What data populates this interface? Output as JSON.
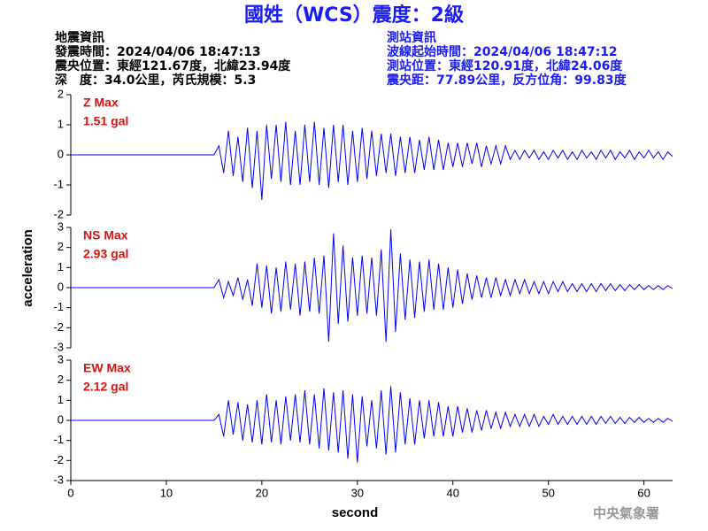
{
  "header": {
    "title": "國姓（WCS）震度：2級",
    "left": [
      "地震資訊",
      "發震時間：2024/04/06 18:47:13",
      "震央位置：東經121.67度，北緯23.94度",
      "深　度：34.0公里，芮氏規模：5.3"
    ],
    "right": [
      "測站資訊",
      "波線起始時間：2024/04/06 18:47:12",
      "測站位置：東經120.91度，北緯24.06度",
      "震央距：77.89公里，反方位角：99.83度"
    ],
    "y_label": "acceleration",
    "x_label": "second",
    "watermark": "中央氣象署"
  },
  "chart_data": [
    {
      "type": "line",
      "annotations": [
        "Z Max",
        "1.51 gal"
      ],
      "xlim": [
        0,
        63
      ],
      "ylim": [
        -2,
        2
      ],
      "yticks": [
        -2,
        -1,
        0,
        1,
        2
      ],
      "x": [
        0,
        15,
        15.5,
        16,
        16.5,
        17,
        17.5,
        18,
        18.5,
        19,
        19.5,
        20,
        20.5,
        21,
        21.5,
        22,
        22.5,
        23,
        23.5,
        24,
        24.5,
        25,
        25.5,
        26,
        26.5,
        27,
        27.5,
        28,
        28.5,
        29,
        29.5,
        30,
        30.5,
        31,
        31.5,
        32,
        32.5,
        33,
        33.5,
        34,
        34.5,
        35,
        35.5,
        36,
        36.5,
        37,
        37.5,
        38,
        38.5,
        39,
        39.5,
        40,
        40.5,
        41,
        41.5,
        42,
        42.5,
        43,
        43.5,
        44,
        44.5,
        45,
        45.5,
        46,
        46.5,
        47,
        47.5,
        48,
        48.5,
        49,
        49.5,
        50,
        50.5,
        51,
        51.5,
        52,
        52.5,
        53,
        53.5,
        54,
        54.5,
        55,
        55.5,
        56,
        56.5,
        57,
        57.5,
        58,
        58.5,
        59,
        59.5,
        60,
        60.5,
        61,
        61.5,
        62,
        62.5,
        63
      ],
      "series": [
        {
          "name": "Z",
          "color": "#0000ff",
          "values": [
            0,
            0,
            0.3,
            -0.6,
            0.8,
            -0.7,
            0.6,
            -0.9,
            0.9,
            -1.1,
            0.8,
            -1.5,
            1.0,
            -0.8,
            1.0,
            -0.9,
            1.1,
            -1.0,
            0.8,
            -1.0,
            1.0,
            -0.9,
            1.1,
            -1.0,
            0.9,
            -1.1,
            1.0,
            -0.9,
            1.0,
            -1.0,
            0.8,
            -0.9,
            0.9,
            -0.8,
            0.8,
            -0.7,
            0.7,
            -0.6,
            0.7,
            -0.7,
            0.6,
            -0.6,
            0.6,
            -0.6,
            0.5,
            -0.5,
            0.6,
            -0.5,
            0.5,
            -0.5,
            0.4,
            -0.4,
            0.4,
            -0.4,
            0.4,
            -0.3,
            0.4,
            -0.4,
            0.3,
            -0.3,
            0.3,
            -0.3,
            0.3,
            -0.15,
            0.15,
            -0.15,
            0.15,
            -0.1,
            0.15,
            -0.15,
            0.1,
            -0.15,
            0.15,
            -0.1,
            0.15,
            -0.15,
            0.1,
            -0.15,
            0.15,
            -0.1,
            0.1,
            -0.15,
            0.15,
            -0.1,
            0.15,
            -0.15,
            0.1,
            -0.1,
            0.15,
            -0.15,
            0.1,
            -0.1,
            0.15,
            -0.1,
            0.1,
            -0.15,
            0.1,
            -0.05
          ]
        }
      ]
    },
    {
      "type": "line",
      "annotations": [
        "NS Max",
        "2.93 gal"
      ],
      "xlim": [
        0,
        63
      ],
      "ylim": [
        -3,
        3
      ],
      "yticks": [
        -3,
        -2,
        -1,
        0,
        1,
        2,
        3
      ],
      "x": [
        0,
        15,
        15.5,
        16,
        16.5,
        17,
        17.5,
        18,
        18.5,
        19,
        19.5,
        20,
        20.5,
        21,
        21.5,
        22,
        22.5,
        23,
        23.5,
        24,
        24.5,
        25,
        25.5,
        26,
        26.5,
        27,
        27.5,
        28,
        28.5,
        29,
        29.5,
        30,
        30.5,
        31,
        31.5,
        32,
        32.5,
        33,
        33.5,
        34,
        34.5,
        35,
        35.5,
        36,
        36.5,
        37,
        37.5,
        38,
        38.5,
        39,
        39.5,
        40,
        40.5,
        41,
        41.5,
        42,
        42.5,
        43,
        43.5,
        44,
        44.5,
        45,
        45.5,
        46,
        46.5,
        47,
        47.5,
        48,
        48.5,
        49,
        49.5,
        50,
        50.5,
        51,
        51.5,
        52,
        52.5,
        53,
        53.5,
        54,
        54.5,
        55,
        55.5,
        56,
        56.5,
        57,
        57.5,
        58,
        58.5,
        59,
        59.5,
        60,
        60.5,
        61,
        61.5,
        62,
        62.5,
        63
      ],
      "series": [
        {
          "name": "NS",
          "color": "#0000ff",
          "values": [
            0,
            0,
            0.4,
            -0.5,
            0.3,
            -0.4,
            0.5,
            -0.6,
            0.4,
            -0.9,
            1.2,
            -1.0,
            1.1,
            -1.3,
            1.0,
            -1.2,
            1.3,
            -1.1,
            1.2,
            -1.4,
            1.3,
            -1.2,
            1.5,
            -1.3,
            1.6,
            -2.7,
            2.7,
            -1.8,
            2.1,
            -1.7,
            1.5,
            -1.4,
            1.6,
            -1.3,
            1.5,
            -1.4,
            1.9,
            -2.7,
            2.9,
            -2.2,
            1.7,
            -1.6,
            1.4,
            -1.5,
            1.3,
            -1.2,
            1.4,
            -1.1,
            1.2,
            -1.1,
            1.0,
            -1.0,
            0.9,
            -0.8,
            0.7,
            -0.6,
            0.6,
            -0.5,
            0.5,
            -0.5,
            0.5,
            -0.4,
            0.4,
            -0.4,
            0.4,
            -0.3,
            0.4,
            -0.3,
            0.3,
            -0.3,
            0.3,
            -0.3,
            0.3,
            -0.2,
            0.3,
            -0.2,
            0.2,
            -0.2,
            0.2,
            -0.2,
            0.2,
            -0.2,
            0.2,
            -0.15,
            0.2,
            -0.15,
            0.15,
            -0.15,
            0.15,
            -0.1,
            0.15,
            -0.1,
            0.1,
            -0.1,
            0.1,
            -0.1,
            0.1,
            -0.05
          ]
        }
      ]
    },
    {
      "type": "line",
      "annotations": [
        "EW Max",
        "2.12 gal"
      ],
      "xlim": [
        0,
        63
      ],
      "ylim": [
        -3,
        3
      ],
      "yticks": [
        -3,
        -2,
        -1,
        0,
        1,
        2,
        3
      ],
      "xticks": [
        0,
        10,
        20,
        30,
        40,
        50,
        60
      ],
      "x": [
        0,
        15,
        15.5,
        16,
        16.5,
        17,
        17.5,
        18,
        18.5,
        19,
        19.5,
        20,
        20.5,
        21,
        21.5,
        22,
        22.5,
        23,
        23.5,
        24,
        24.5,
        25,
        25.5,
        26,
        26.5,
        27,
        27.5,
        28,
        28.5,
        29,
        29.5,
        30,
        30.5,
        31,
        31.5,
        32,
        32.5,
        33,
        33.5,
        34,
        34.5,
        35,
        35.5,
        36,
        36.5,
        37,
        37.5,
        38,
        38.5,
        39,
        39.5,
        40,
        40.5,
        41,
        41.5,
        42,
        42.5,
        43,
        43.5,
        44,
        44.5,
        45,
        45.5,
        46,
        46.5,
        47,
        47.5,
        48,
        48.5,
        49,
        49.5,
        50,
        50.5,
        51,
        51.5,
        52,
        52.5,
        53,
        53.5,
        54,
        54.5,
        55,
        55.5,
        56,
        56.5,
        57,
        57.5,
        58,
        58.5,
        59,
        59.5,
        60,
        60.5,
        61,
        61.5,
        62,
        62.5,
        63
      ],
      "series": [
        {
          "name": "EW",
          "color": "#0000ff",
          "values": [
            0,
            0,
            0.3,
            -0.8,
            1.0,
            -0.7,
            0.9,
            -1.0,
            0.8,
            -1.1,
            1.0,
            -1.2,
            1.3,
            -1.1,
            1.0,
            -1.2,
            1.2,
            -1.0,
            1.3,
            -1.1,
            1.5,
            -1.2,
            1.3,
            -1.4,
            1.6,
            -1.5,
            1.4,
            -1.6,
            1.5,
            -1.9,
            1.3,
            -2.1,
            1.2,
            -1.3,
            1.0,
            -1.4,
            1.5,
            -1.7,
            1.7,
            -1.6,
            1.4,
            -1.2,
            1.1,
            -1.2,
            1.0,
            -0.9,
            1.0,
            -0.8,
            0.9,
            -0.8,
            0.7,
            -0.8,
            0.7,
            -0.6,
            0.6,
            -0.6,
            0.5,
            -0.5,
            0.5,
            -0.4,
            0.4,
            -0.4,
            0.4,
            -0.3,
            0.3,
            -0.3,
            0.3,
            -0.3,
            0.3,
            -0.3,
            0.2,
            -0.2,
            0.3,
            -0.2,
            0.2,
            -0.2,
            0.2,
            -0.2,
            0.2,
            -0.2,
            0.2,
            -0.2,
            0.2,
            -0.15,
            0.2,
            -0.15,
            0.15,
            -0.15,
            0.15,
            -0.1,
            0.15,
            -0.1,
            0.1,
            -0.1,
            0.1,
            -0.1,
            0.1,
            -0.05
          ]
        }
      ]
    }
  ]
}
